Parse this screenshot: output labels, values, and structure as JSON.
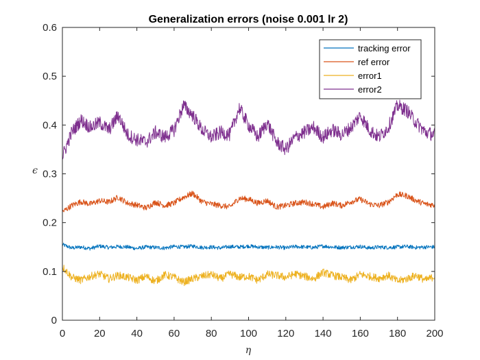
{
  "chart_data": {
    "type": "line",
    "title": "Generalization errors (noise 0.001 lr 2)",
    "xlabel": "η",
    "ylabel": "ϵ",
    "xlim": [
      0,
      200
    ],
    "ylim": [
      0,
      0.6
    ],
    "xticks": [
      "0",
      "20",
      "40",
      "60",
      "80",
      "100",
      "120",
      "140",
      "160",
      "180",
      "200"
    ],
    "yticks": [
      "0",
      "0.1",
      "0.2",
      "0.3",
      "0.4",
      "0.5",
      "0.6"
    ],
    "grid": false,
    "legend_position": "top-right",
    "series": [
      {
        "name": "tracking error",
        "color": "#0072BD",
        "x": [
          0,
          5,
          10,
          15,
          20,
          25,
          30,
          35,
          40,
          45,
          50,
          55,
          60,
          65,
          70,
          75,
          80,
          85,
          90,
          95,
          100,
          105,
          110,
          115,
          120,
          125,
          130,
          135,
          140,
          145,
          150,
          155,
          160,
          165,
          170,
          175,
          180,
          185,
          190,
          195,
          200
        ],
        "values": [
          0.155,
          0.148,
          0.15,
          0.147,
          0.152,
          0.149,
          0.151,
          0.15,
          0.147,
          0.15,
          0.149,
          0.148,
          0.151,
          0.15,
          0.152,
          0.149,
          0.15,
          0.148,
          0.151,
          0.15,
          0.152,
          0.15,
          0.149,
          0.15,
          0.148,
          0.151,
          0.15,
          0.149,
          0.152,
          0.15,
          0.149,
          0.15,
          0.151,
          0.148,
          0.15,
          0.149,
          0.15,
          0.151,
          0.149,
          0.15,
          0.15
        ]
      },
      {
        "name": "ref error",
        "color": "#D95319",
        "x": [
          0,
          5,
          10,
          15,
          20,
          25,
          30,
          35,
          40,
          45,
          50,
          55,
          60,
          65,
          70,
          75,
          80,
          85,
          90,
          95,
          100,
          105,
          110,
          115,
          120,
          125,
          130,
          135,
          140,
          145,
          150,
          155,
          160,
          165,
          170,
          175,
          180,
          185,
          190,
          195,
          200
        ],
        "values": [
          0.222,
          0.235,
          0.243,
          0.238,
          0.245,
          0.242,
          0.252,
          0.24,
          0.236,
          0.23,
          0.242,
          0.235,
          0.24,
          0.252,
          0.26,
          0.243,
          0.238,
          0.235,
          0.232,
          0.25,
          0.248,
          0.24,
          0.245,
          0.232,
          0.235,
          0.24,
          0.242,
          0.238,
          0.232,
          0.24,
          0.235,
          0.243,
          0.248,
          0.238,
          0.235,
          0.242,
          0.258,
          0.255,
          0.245,
          0.238,
          0.236
        ]
      },
      {
        "name": "error1",
        "color": "#EDB120",
        "x": [
          0,
          5,
          10,
          15,
          20,
          25,
          30,
          35,
          40,
          45,
          50,
          55,
          60,
          65,
          70,
          75,
          80,
          85,
          90,
          95,
          100,
          105,
          110,
          115,
          120,
          125,
          130,
          135,
          140,
          145,
          150,
          155,
          160,
          165,
          170,
          175,
          180,
          185,
          190,
          195,
          200
        ],
        "values": [
          0.11,
          0.088,
          0.082,
          0.09,
          0.095,
          0.085,
          0.092,
          0.088,
          0.082,
          0.09,
          0.08,
          0.093,
          0.088,
          0.078,
          0.085,
          0.09,
          0.094,
          0.085,
          0.095,
          0.088,
          0.09,
          0.082,
          0.094,
          0.092,
          0.088,
          0.095,
          0.09,
          0.085,
          0.098,
          0.092,
          0.088,
          0.082,
          0.094,
          0.09,
          0.086,
          0.092,
          0.08,
          0.085,
          0.092,
          0.082,
          0.09
        ]
      },
      {
        "name": "error2",
        "color": "#7E2F8E",
        "x": [
          0,
          5,
          10,
          15,
          20,
          25,
          30,
          35,
          40,
          45,
          50,
          55,
          60,
          65,
          70,
          75,
          80,
          85,
          90,
          95,
          100,
          105,
          110,
          115,
          120,
          125,
          130,
          135,
          140,
          145,
          150,
          155,
          160,
          165,
          170,
          175,
          180,
          185,
          190,
          195,
          200
        ],
        "values": [
          0.335,
          0.385,
          0.41,
          0.395,
          0.405,
          0.39,
          0.42,
          0.38,
          0.37,
          0.365,
          0.385,
          0.375,
          0.39,
          0.44,
          0.42,
          0.39,
          0.375,
          0.385,
          0.38,
          0.435,
          0.4,
          0.375,
          0.405,
          0.365,
          0.35,
          0.375,
          0.385,
          0.395,
          0.375,
          0.39,
          0.38,
          0.395,
          0.42,
          0.39,
          0.375,
          0.395,
          0.44,
          0.43,
          0.405,
          0.385,
          0.38
        ]
      }
    ]
  }
}
